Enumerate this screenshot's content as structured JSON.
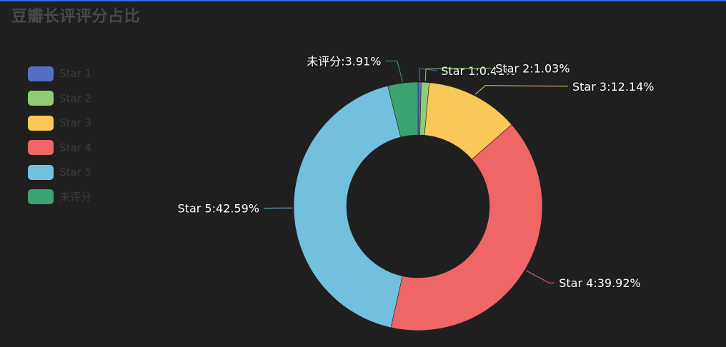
{
  "chart_data": {
    "type": "pie",
    "title": "豆瓣长评评分占比",
    "categories": [
      "Star 1",
      "Star 2",
      "Star 3",
      "Star 4",
      "Star 5",
      "未评分"
    ],
    "values": [
      0.41,
      1.03,
      12.14,
      39.92,
      42.59,
      3.91
    ],
    "unit": "%",
    "labels": [
      "Star 1:0.41%",
      "Star 2:1.03%",
      "Star 3:12.14%",
      "Star 4:39.92%",
      "Star 5:42.59%",
      "未评分:3.91%"
    ],
    "colors": [
      "#5470c6",
      "#91cc75",
      "#fac858",
      "#ee6666",
      "#73c0de",
      "#3ba272"
    ],
    "donut": true,
    "legend_position": "left"
  },
  "legend": {
    "items": [
      {
        "label": "Star 1",
        "color": "#5470c6"
      },
      {
        "label": "Star 2",
        "color": "#91cc75"
      },
      {
        "label": "Star 3",
        "color": "#fac858"
      },
      {
        "label": "Star 4",
        "color": "#ee6666"
      },
      {
        "label": "Star 5",
        "color": "#73c0de"
      },
      {
        "label": "未评分",
        "color": "#3ba272"
      }
    ]
  }
}
